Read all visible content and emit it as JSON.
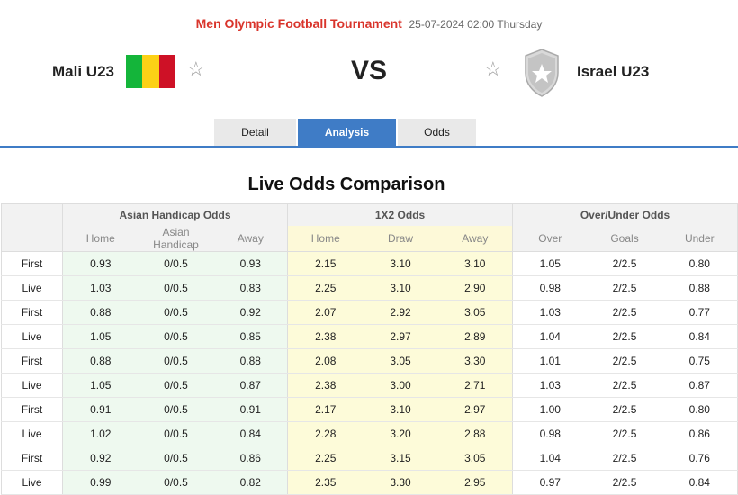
{
  "match": {
    "tournament": "Men Olympic Football Tournament",
    "datetime": "25-07-2024 02:00 Thursday",
    "home_team": "Mali U23",
    "away_team": "Israel U23",
    "vs": "VS",
    "flag_colors": [
      "#14b53a",
      "#fcd116",
      "#ce1126"
    ]
  },
  "tabs": [
    {
      "label": "Detail"
    },
    {
      "label": "Analysis",
      "active": true
    },
    {
      "label": "Odds"
    }
  ],
  "section_title": "Live Odds Comparison",
  "table": {
    "groups": [
      "Asian Handicap Odds",
      "1X2 Odds",
      "Over/Under Odds"
    ],
    "sub_headers": [
      "Home",
      "Asian Handicap",
      "Away",
      "Home",
      "Draw",
      "Away",
      "Over",
      "Goals",
      "Under"
    ],
    "rows": [
      [
        "First",
        "0.93",
        "0/0.5",
        "0.93",
        "2.15",
        "3.10",
        "3.10",
        "1.05",
        "2/2.5",
        "0.80"
      ],
      [
        "Live",
        "1.03",
        "0/0.5",
        "0.83",
        "2.25",
        "3.10",
        "2.90",
        "0.98",
        "2/2.5",
        "0.88"
      ],
      [
        "First",
        "0.88",
        "0/0.5",
        "0.92",
        "2.07",
        "2.92",
        "3.05",
        "1.03",
        "2/2.5",
        "0.77"
      ],
      [
        "Live",
        "1.05",
        "0/0.5",
        "0.85",
        "2.38",
        "2.97",
        "2.89",
        "1.04",
        "2/2.5",
        "0.84"
      ],
      [
        "First",
        "0.88",
        "0/0.5",
        "0.88",
        "2.08",
        "3.05",
        "3.30",
        "1.01",
        "2/2.5",
        "0.75"
      ],
      [
        "Live",
        "1.05",
        "0/0.5",
        "0.87",
        "2.38",
        "3.00",
        "2.71",
        "1.03",
        "2/2.5",
        "0.87"
      ],
      [
        "First",
        "0.91",
        "0/0.5",
        "0.91",
        "2.17",
        "3.10",
        "2.97",
        "1.00",
        "2/2.5",
        "0.80"
      ],
      [
        "Live",
        "1.02",
        "0/0.5",
        "0.84",
        "2.28",
        "3.20",
        "2.88",
        "0.98",
        "2/2.5",
        "0.86"
      ],
      [
        "First",
        "0.92",
        "0/0.5",
        "0.86",
        "2.25",
        "3.15",
        "3.05",
        "1.04",
        "2/2.5",
        "0.76"
      ],
      [
        "Live",
        "0.99",
        "0/0.5",
        "0.82",
        "2.35",
        "3.30",
        "2.95",
        "0.97",
        "2/2.5",
        "0.84"
      ]
    ]
  },
  "icons": {
    "favorite": "star-outline-icon",
    "away_logo": "shield-star-icon"
  }
}
